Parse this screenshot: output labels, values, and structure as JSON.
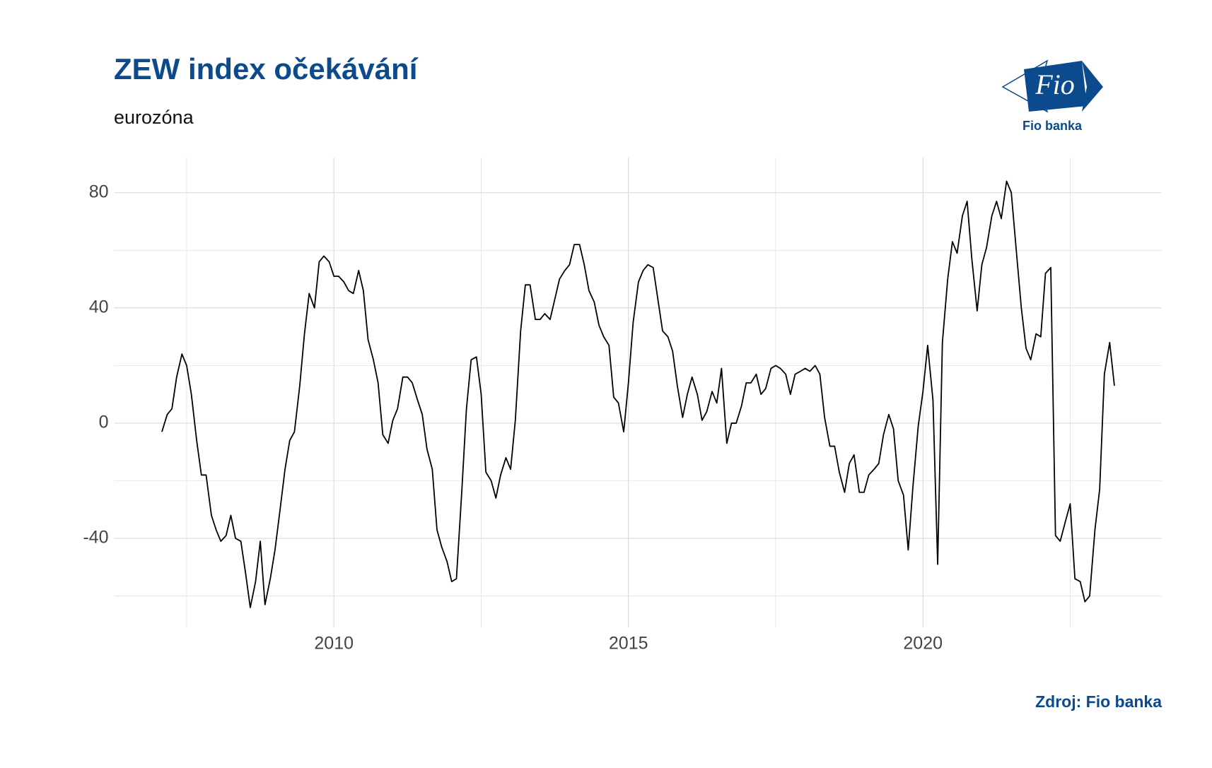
{
  "chart_data": {
    "type": "line",
    "title": "ZEW index očekávání",
    "subtitle": "eurozóna",
    "source": "Zdroj: Fio banka",
    "logo": {
      "mark": "Fio",
      "name": "Fio banka"
    },
    "color": "#000000",
    "x": [
      2007.08,
      2007.17,
      2007.25,
      2007.33,
      2007.42,
      2007.5,
      2007.58,
      2007.67,
      2007.75,
      2007.83,
      2007.92,
      2008,
      2008.08,
      2008.17,
      2008.25,
      2008.33,
      2008.42,
      2008.5,
      2008.58,
      2008.67,
      2008.75,
      2008.83,
      2008.92,
      2009,
      2009.08,
      2009.17,
      2009.25,
      2009.33,
      2009.42,
      2009.5,
      2009.58,
      2009.67,
      2009.75,
      2009.83,
      2009.92,
      2010,
      2010.08,
      2010.17,
      2010.25,
      2010.33,
      2010.42,
      2010.5,
      2010.58,
      2010.67,
      2010.75,
      2010.83,
      2010.92,
      2011,
      2011.08,
      2011.17,
      2011.25,
      2011.33,
      2011.42,
      2011.5,
      2011.58,
      2011.67,
      2011.75,
      2011.83,
      2011.92,
      2012,
      2012.08,
      2012.17,
      2012.25,
      2012.33,
      2012.42,
      2012.5,
      2012.58,
      2012.67,
      2012.75,
      2012.83,
      2012.92,
      2013,
      2013.08,
      2013.17,
      2013.25,
      2013.33,
      2013.42,
      2013.5,
      2013.58,
      2013.67,
      2013.75,
      2013.83,
      2013.92,
      2014,
      2014.08,
      2014.17,
      2014.25,
      2014.33,
      2014.42,
      2014.5,
      2014.58,
      2014.67,
      2014.75,
      2014.83,
      2014.92,
      2015,
      2015.08,
      2015.17,
      2015.25,
      2015.33,
      2015.42,
      2015.5,
      2015.58,
      2015.67,
      2015.75,
      2015.83,
      2015.92,
      2016,
      2016.08,
      2016.17,
      2016.25,
      2016.33,
      2016.42,
      2016.5,
      2016.58,
      2016.67,
      2016.75,
      2016.83,
      2016.92,
      2017,
      2017.08,
      2017.17,
      2017.25,
      2017.33,
      2017.42,
      2017.5,
      2017.58,
      2017.67,
      2017.75,
      2017.83,
      2017.92,
      2018,
      2018.08,
      2018.17,
      2018.25,
      2018.33,
      2018.42,
      2018.5,
      2018.58,
      2018.67,
      2018.75,
      2018.83,
      2018.92,
      2019,
      2019.08,
      2019.17,
      2019.25,
      2019.33,
      2019.42,
      2019.5,
      2019.58,
      2019.67,
      2019.75,
      2019.83,
      2019.92,
      2020,
      2020.08,
      2020.17,
      2020.25,
      2020.33,
      2020.42,
      2020.5,
      2020.58,
      2020.67,
      2020.75,
      2020.83,
      2020.92,
      2021,
      2021.08,
      2021.17,
      2021.25,
      2021.33,
      2021.42,
      2021.5,
      2021.58,
      2021.67,
      2021.75,
      2021.83,
      2021.92,
      2022,
      2022.08,
      2022.17,
      2022.25,
      2022.33,
      2022.42,
      2022.5,
      2022.58,
      2022.67,
      2022.75,
      2022.83,
      2022.92,
      2023,
      2023.08,
      2023.17,
      2023.25
    ],
    "values": [
      -3,
      3,
      5,
      16,
      24,
      20,
      10,
      -6,
      -18,
      -18,
      -32,
      -37,
      -41,
      -39,
      -32,
      -40,
      -41,
      -52,
      -64,
      -55,
      -41,
      -63,
      -54,
      -44,
      -31,
      -16,
      -6,
      -3,
      13,
      31,
      45,
      40,
      56,
      58,
      56,
      51,
      51,
      49,
      46,
      45,
      53,
      46,
      29,
      22,
      14,
      -4,
      -7,
      1,
      5,
      16,
      16,
      14,
      8,
      3,
      -9,
      -16,
      -37,
      -43,
      -48,
      -55,
      -54,
      -24,
      5,
      22,
      23,
      10,
      -17,
      -20,
      -26,
      -18,
      -12,
      -16,
      1,
      32,
      48,
      48,
      36,
      36,
      38,
      36,
      43,
      50,
      53,
      55,
      62,
      62,
      55,
      46,
      42,
      34,
      30,
      27,
      9,
      7,
      -3,
      14,
      35,
      49,
      53,
      55,
      54,
      43,
      32,
      30,
      25,
      13,
      2,
      10,
      16,
      10,
      1,
      4,
      11,
      7,
      19,
      -7,
      0,
      0,
      6,
      14,
      14,
      17,
      10,
      12,
      19,
      20,
      19,
      17,
      10,
      17,
      18,
      19,
      18,
      20,
      17,
      2,
      -8,
      -8,
      -17,
      -24,
      -14,
      -11,
      -24,
      -24,
      -18,
      -16,
      -14,
      -4,
      3,
      -2,
      -20,
      -25,
      -44,
      -22,
      -1,
      11,
      27,
      8,
      -49,
      28,
      50,
      63,
      59,
      72,
      77,
      57,
      39,
      55,
      61,
      72,
      77,
      71,
      84,
      80,
      61,
      40,
      26,
      22,
      31,
      30,
      52,
      54,
      -39,
      -41,
      -34,
      -28,
      -54,
      -55,
      -62,
      -60,
      -37,
      -23,
      17,
      28,
      13
    ],
    "xlim": [
      2006.27,
      2024.05
    ],
    "ylim": [
      -70.9,
      92.2
    ],
    "xticks": [
      2010,
      2015,
      2020
    ],
    "xticks_minor": [
      2007.5,
      2012.5,
      2017.5,
      2022.5
    ],
    "yticks": [
      -40,
      0,
      40,
      80
    ],
    "yticks_minor": [
      -60,
      -20,
      20,
      60
    ],
    "grid": true
  }
}
